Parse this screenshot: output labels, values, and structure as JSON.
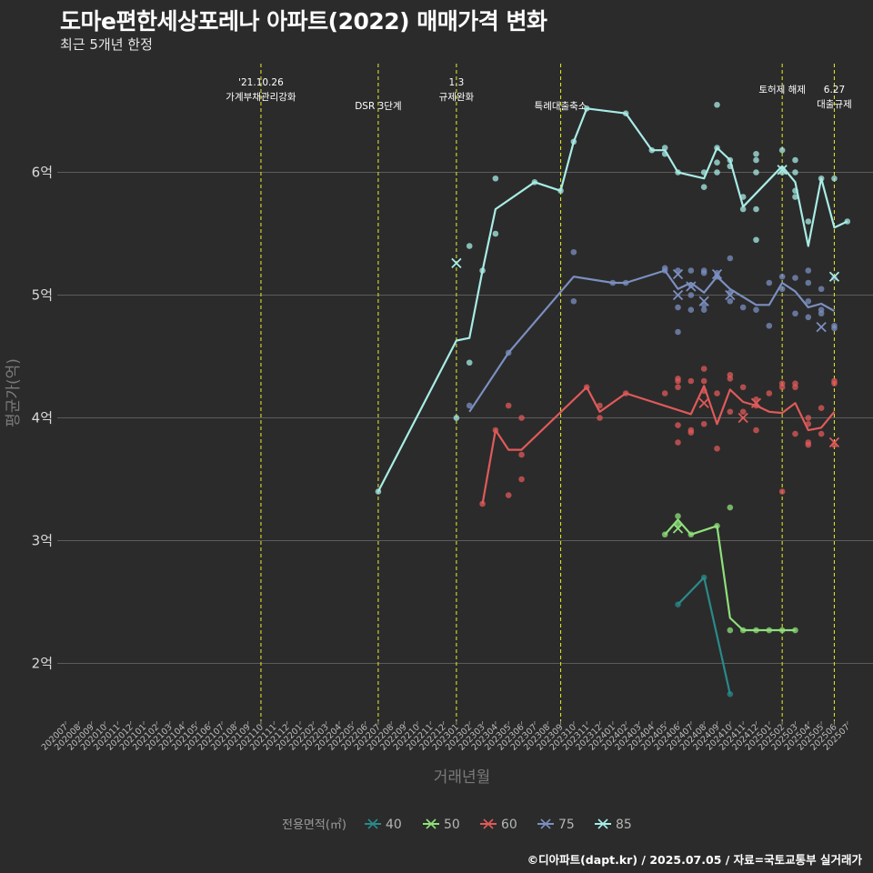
{
  "title": "도마e편한세상포레나 아파트(2022) 매매가격 변화",
  "subtitle": "최근 5개년 한정",
  "caption": "©디아파트(dapt.kr) / 2025.07.05 / 자료=국토교통부 실거래가",
  "chart_data": {
    "type": "line",
    "xlabel": "거래년월",
    "ylabel": "평균가(억)",
    "x_ticks": [
      "202007",
      "202008",
      "202009",
      "202010",
      "202011",
      "202012",
      "202101",
      "202102",
      "202103",
      "202104",
      "202105",
      "202106",
      "202107",
      "202108",
      "202109",
      "202110",
      "202111",
      "202112",
      "202201",
      "202202",
      "202203",
      "202204",
      "202205",
      "202206",
      "202207",
      "202208",
      "202209",
      "202210",
      "202211",
      "202212",
      "202301",
      "202302",
      "202303",
      "202304",
      "202305",
      "202306",
      "202307",
      "202308",
      "202309",
      "202310",
      "202311",
      "202312",
      "202401",
      "202402",
      "202403",
      "202404",
      "202405",
      "202406",
      "202407",
      "202408",
      "202409",
      "202410",
      "202411",
      "202412",
      "202501",
      "202502",
      "202503",
      "202504",
      "202505",
      "202506",
      "202507"
    ],
    "y_ticks": [
      {
        "value": 2,
        "label": "2억"
      },
      {
        "value": 3,
        "label": "3억"
      },
      {
        "value": 4,
        "label": "4억"
      },
      {
        "value": 5,
        "label": "5억"
      },
      {
        "value": 6,
        "label": "6억"
      }
    ],
    "ylim": [
      1.5,
      7.05
    ],
    "grid": true,
    "legend_title": "전용면적(㎡)",
    "legend_position": "bottom",
    "annotations": [
      {
        "x": "202110",
        "lines": [
          "'21.10.26",
          "가계부채관리강화"
        ],
        "row": 1
      },
      {
        "x": "202207",
        "lines": [
          "DSR 3단계"
        ],
        "row": 3
      },
      {
        "x": "202301",
        "lines": [
          "1.3",
          "규제완화"
        ],
        "row": 1
      },
      {
        "x": "202309",
        "lines": [
          "특례대출축소"
        ],
        "row": 3
      },
      {
        "x": "202502",
        "lines": [
          "토허제 해제"
        ],
        "row": 2
      },
      {
        "x": "202506",
        "lines": [
          "6.27",
          "대출규제"
        ],
        "row": 2
      }
    ],
    "series": [
      {
        "name": "40",
        "color": "#2a8a8a",
        "line": [
          [
            "202406",
            2.48
          ],
          [
            "202408",
            2.7
          ],
          [
            "202410",
            1.75
          ]
        ],
        "points": [
          [
            "202406",
            2.48
          ],
          [
            "202408",
            2.7
          ],
          [
            "202410",
            1.75
          ]
        ],
        "cancelled": []
      },
      {
        "name": "50",
        "color": "#8fe07a",
        "line": [
          [
            "202405",
            3.05
          ],
          [
            "202406",
            3.17
          ],
          [
            "202407",
            3.05
          ],
          [
            "202409",
            3.12
          ],
          [
            "202410",
            2.37
          ],
          [
            "202411",
            2.27
          ],
          [
            "202412",
            2.27
          ],
          [
            "202501",
            2.27
          ],
          [
            "202502",
            2.27
          ],
          [
            "202503",
            2.27
          ]
        ],
        "points": [
          [
            "202405",
            3.05
          ],
          [
            "202406",
            3.2
          ],
          [
            "202406",
            3.13
          ],
          [
            "202407",
            3.05
          ],
          [
            "202409",
            3.12
          ],
          [
            "202410",
            3.27
          ],
          [
            "202410",
            2.27
          ],
          [
            "202411",
            2.27
          ],
          [
            "202412",
            2.27
          ],
          [
            "202501",
            2.27
          ],
          [
            "202502",
            2.27
          ],
          [
            "202503",
            2.27
          ]
        ],
        "cancelled": [
          [
            "202406",
            3.1
          ]
        ]
      },
      {
        "name": "60",
        "color": "#e05a5a",
        "line": [
          [
            "202303",
            3.3
          ],
          [
            "202304",
            3.9
          ],
          [
            "202305",
            3.74
          ],
          [
            "202306",
            3.74
          ],
          [
            "202311",
            4.25
          ],
          [
            "202312",
            4.05
          ],
          [
            "202402",
            4.2
          ],
          [
            "202407",
            4.03
          ],
          [
            "202408",
            4.26
          ],
          [
            "202409",
            3.95
          ],
          [
            "202410",
            4.23
          ],
          [
            "202411",
            4.13
          ],
          [
            "202412",
            4.1
          ],
          [
            "202501",
            4.05
          ],
          [
            "202502",
            4.04
          ],
          [
            "202503",
            4.12
          ],
          [
            "202504",
            3.9
          ],
          [
            "202505",
            3.92
          ],
          [
            "202506",
            4.05
          ]
        ],
        "points": [
          [
            "202303",
            3.3
          ],
          [
            "202304",
            3.9
          ],
          [
            "202305",
            4.1
          ],
          [
            "202305",
            3.37
          ],
          [
            "202306",
            4.0
          ],
          [
            "202306",
            3.5
          ],
          [
            "202306",
            3.7
          ],
          [
            "202311",
            4.25
          ],
          [
            "202312",
            4.1
          ],
          [
            "202312",
            4.0
          ],
          [
            "202402",
            4.2
          ],
          [
            "202405",
            4.2
          ],
          [
            "202406",
            4.32
          ],
          [
            "202406",
            4.3
          ],
          [
            "202406",
            4.25
          ],
          [
            "202406",
            3.94
          ],
          [
            "202406",
            3.8
          ],
          [
            "202407",
            4.3
          ],
          [
            "202407",
            3.9
          ],
          [
            "202407",
            3.88
          ],
          [
            "202408",
            4.4
          ],
          [
            "202408",
            4.3
          ],
          [
            "202408",
            4.22
          ],
          [
            "202408",
            3.95
          ],
          [
            "202409",
            4.2
          ],
          [
            "202409",
            3.75
          ],
          [
            "202410",
            4.35
          ],
          [
            "202410",
            4.32
          ],
          [
            "202410",
            4.05
          ],
          [
            "202411",
            4.25
          ],
          [
            "202411",
            4.05
          ],
          [
            "202412",
            4.15
          ],
          [
            "202412",
            4.1
          ],
          [
            "202412",
            3.9
          ],
          [
            "202501",
            4.2
          ],
          [
            "202502",
            4.28
          ],
          [
            "202502",
            4.25
          ],
          [
            "202502",
            3.4
          ],
          [
            "202503",
            4.28
          ],
          [
            "202503",
            4.25
          ],
          [
            "202503",
            3.87
          ],
          [
            "202504",
            4.0
          ],
          [
            "202504",
            3.95
          ],
          [
            "202504",
            3.8
          ],
          [
            "202504",
            3.78
          ],
          [
            "202505",
            4.08
          ],
          [
            "202505",
            3.87
          ],
          [
            "202506",
            4.3
          ],
          [
            "202506",
            4.28
          ],
          [
            "202506",
            3.78
          ]
        ],
        "cancelled": [
          [
            "202408",
            4.12
          ],
          [
            "202411",
            4.0
          ],
          [
            "202412",
            4.12
          ],
          [
            "202506",
            3.8
          ]
        ]
      },
      {
        "name": "75",
        "color": "#7b8fc0",
        "line": [
          [
            "202302",
            4.05
          ],
          [
            "202305",
            4.53
          ],
          [
            "202310",
            5.15
          ],
          [
            "202401",
            5.1
          ],
          [
            "202402",
            5.1
          ],
          [
            "202405",
            5.2
          ],
          [
            "202406",
            5.05
          ],
          [
            "202407",
            5.1
          ],
          [
            "202408",
            5.02
          ],
          [
            "202409",
            5.15
          ],
          [
            "202410",
            5.05
          ],
          [
            "202412",
            4.92
          ],
          [
            "202501",
            4.92
          ],
          [
            "202502",
            5.1
          ],
          [
            "202503",
            5.03
          ],
          [
            "202504",
            4.9
          ],
          [
            "202505",
            4.93
          ],
          [
            "202506",
            4.87
          ]
        ],
        "points": [
          [
            "202302",
            4.1
          ],
          [
            "202305",
            4.53
          ],
          [
            "202310",
            5.35
          ],
          [
            "202310",
            4.95
          ],
          [
            "202401",
            5.1
          ],
          [
            "202402",
            5.1
          ],
          [
            "202405",
            5.22
          ],
          [
            "202405",
            5.2
          ],
          [
            "202406",
            5.2
          ],
          [
            "202406",
            4.9
          ],
          [
            "202406",
            4.7
          ],
          [
            "202407",
            5.2
          ],
          [
            "202407",
            5.08
          ],
          [
            "202407",
            5.0
          ],
          [
            "202407",
            4.88
          ],
          [
            "202408",
            5.2
          ],
          [
            "202408",
            5.18
          ],
          [
            "202408",
            4.92
          ],
          [
            "202408",
            4.88
          ],
          [
            "202409",
            5.18
          ],
          [
            "202409",
            5.15
          ],
          [
            "202410",
            5.3
          ],
          [
            "202410",
            5.02
          ],
          [
            "202410",
            4.95
          ],
          [
            "202411",
            4.9
          ],
          [
            "202412",
            4.88
          ],
          [
            "202501",
            5.1
          ],
          [
            "202501",
            4.75
          ],
          [
            "202502",
            5.15
          ],
          [
            "202502",
            5.05
          ],
          [
            "202503",
            5.14
          ],
          [
            "202503",
            4.85
          ],
          [
            "202504",
            5.2
          ],
          [
            "202504",
            5.1
          ],
          [
            "202504",
            4.95
          ],
          [
            "202504",
            4.82
          ],
          [
            "202505",
            5.05
          ],
          [
            "202505",
            4.88
          ],
          [
            "202505",
            4.85
          ],
          [
            "202506",
            5.14
          ],
          [
            "202506",
            4.75
          ],
          [
            "202506",
            4.73
          ]
        ],
        "cancelled": [
          [
            "202406",
            5.17
          ],
          [
            "202406",
            5.0
          ],
          [
            "202407",
            5.07
          ],
          [
            "202408",
            4.95
          ],
          [
            "202409",
            5.17
          ],
          [
            "202410",
            5.0
          ],
          [
            "202505",
            4.74
          ]
        ]
      },
      {
        "name": "85",
        "color": "#a8ece6",
        "line": [
          [
            "202207",
            3.4
          ],
          [
            "202301",
            4.63
          ],
          [
            "202302",
            4.65
          ],
          [
            "202303",
            5.2
          ],
          [
            "202304",
            5.7
          ],
          [
            "202307",
            5.92
          ],
          [
            "202309",
            5.85
          ],
          [
            "202310",
            6.25
          ],
          [
            "202311",
            6.52
          ],
          [
            "202402",
            6.48
          ],
          [
            "202404",
            6.18
          ],
          [
            "202405",
            6.18
          ],
          [
            "202406",
            6.0
          ],
          [
            "202408",
            5.95
          ],
          [
            "202409",
            6.2
          ],
          [
            "202410",
            6.1
          ],
          [
            "202411",
            5.72
          ],
          [
            "202502",
            6.05
          ],
          [
            "202503",
            5.92
          ],
          [
            "202504",
            5.4
          ],
          [
            "202505",
            5.95
          ],
          [
            "202506",
            5.55
          ],
          [
            "202507",
            5.6
          ]
        ],
        "points": [
          [
            "202207",
            3.4
          ],
          [
            "202301",
            4.0
          ],
          [
            "202302",
            5.4
          ],
          [
            "202302",
            4.45
          ],
          [
            "202303",
            5.2
          ],
          [
            "202304",
            5.95
          ],
          [
            "202304",
            5.5
          ],
          [
            "202307",
            5.92
          ],
          [
            "202309",
            5.85
          ],
          [
            "202310",
            6.25
          ],
          [
            "202311",
            6.52
          ],
          [
            "202402",
            6.48
          ],
          [
            "202404",
            6.18
          ],
          [
            "202405",
            6.2
          ],
          [
            "202405",
            6.15
          ],
          [
            "202406",
            6.0
          ],
          [
            "202408",
            6.0
          ],
          [
            "202408",
            5.88
          ],
          [
            "202409",
            6.55
          ],
          [
            "202409",
            6.2
          ],
          [
            "202409",
            6.08
          ],
          [
            "202409",
            6.0
          ],
          [
            "202410",
            6.1
          ],
          [
            "202410",
            6.05
          ],
          [
            "202411",
            5.8
          ],
          [
            "202411",
            5.7
          ],
          [
            "202412",
            6.15
          ],
          [
            "202412",
            6.1
          ],
          [
            "202412",
            6.0
          ],
          [
            "202412",
            5.7
          ],
          [
            "202412",
            5.45
          ],
          [
            "202502",
            6.18
          ],
          [
            "202502",
            6.0
          ],
          [
            "202503",
            6.1
          ],
          [
            "202503",
            6.0
          ],
          [
            "202503",
            5.85
          ],
          [
            "202503",
            5.8
          ],
          [
            "202504",
            5.6
          ],
          [
            "202505",
            5.95
          ],
          [
            "202506",
            5.95
          ],
          [
            "202507",
            5.6
          ]
        ],
        "cancelled": [
          [
            "202301",
            5.26
          ],
          [
            "202502",
            6.02
          ],
          [
            "202506",
            5.15
          ]
        ]
      }
    ]
  }
}
